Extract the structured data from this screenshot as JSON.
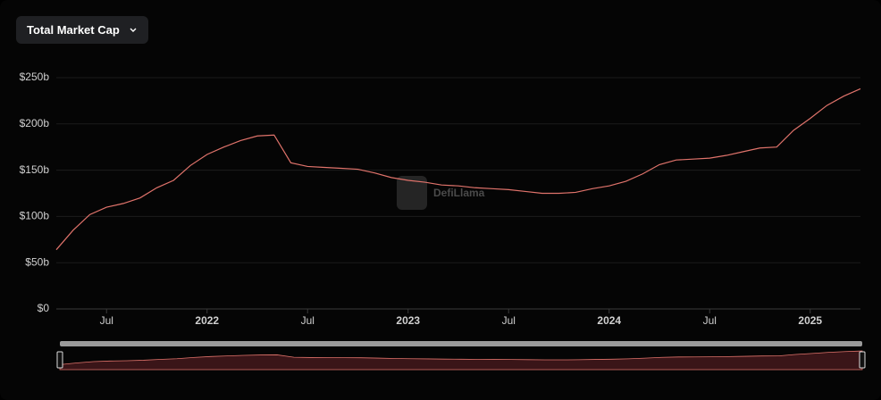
{
  "header": {
    "dropdown": "Total Market Cap"
  },
  "chart_data": {
    "type": "line",
    "watermark": "DefiLlama",
    "x": [
      "2021-04",
      "2021-05",
      "2021-06",
      "2021-07",
      "2021-08",
      "2021-09",
      "2021-10",
      "2021-11",
      "2021-12",
      "2022-01",
      "2022-02",
      "2022-03",
      "2022-04",
      "2022-05",
      "2022-06",
      "2022-07",
      "2022-08",
      "2022-09",
      "2022-10",
      "2022-11",
      "2022-12",
      "2023-01",
      "2023-02",
      "2023-03",
      "2023-04",
      "2023-05",
      "2023-06",
      "2023-07",
      "2023-08",
      "2023-09",
      "2023-10",
      "2023-11",
      "2023-12",
      "2024-01",
      "2024-02",
      "2024-03",
      "2024-04",
      "2024-05",
      "2024-06",
      "2024-07",
      "2024-08",
      "2024-09",
      "2024-10",
      "2024-11",
      "2024-12",
      "2025-01",
      "2025-02",
      "2025-03",
      "2025-04"
    ],
    "series": [
      {
        "name": "Total Market Cap",
        "color": "#e0736b",
        "values": [
          64,
          85,
          102,
          110,
          114,
          120,
          131,
          139,
          155,
          167,
          175,
          182,
          187,
          188,
          158,
          154,
          153,
          152,
          151,
          147,
          142,
          139,
          137,
          134,
          133,
          131,
          130,
          129,
          127,
          125,
          125,
          126,
          130,
          133,
          138,
          146,
          156,
          161,
          162,
          163,
          166,
          170,
          174,
          175,
          193,
          206,
          220,
          230,
          238
        ]
      }
    ],
    "xlim": [
      "2021-04",
      "2025-04"
    ],
    "xticks": [
      {
        "value": "2021-07",
        "label": "Jul"
      },
      {
        "value": "2022-01",
        "label": "2022"
      },
      {
        "value": "2022-07",
        "label": "Jul"
      },
      {
        "value": "2023-01",
        "label": "2023"
      },
      {
        "value": "2023-07",
        "label": "Jul"
      },
      {
        "value": "2024-01",
        "label": "2024"
      },
      {
        "value": "2024-07",
        "label": "Jul"
      },
      {
        "value": "2025-01",
        "label": "2025"
      }
    ],
    "ylim": [
      0,
      250
    ],
    "yticks": [
      {
        "value": 0,
        "label": "$0"
      },
      {
        "value": 50,
        "label": "$50b"
      },
      {
        "value": 100,
        "label": "$100b"
      },
      {
        "value": 150,
        "label": "$150b"
      },
      {
        "value": 200,
        "label": "$200b"
      },
      {
        "value": 250,
        "label": "$250b"
      }
    ],
    "grid": true
  }
}
